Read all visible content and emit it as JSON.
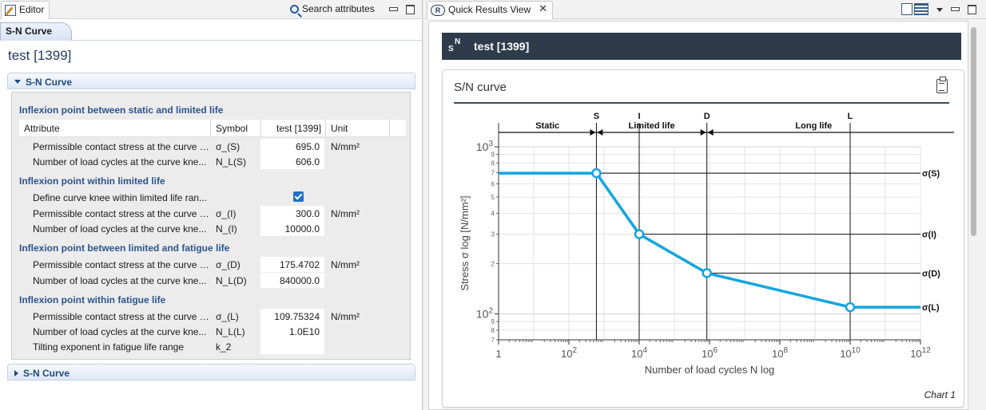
{
  "editor": {
    "tab_label": "Editor",
    "search_label": "Search attributes",
    "doc_tab": "S-N Curve",
    "doc_title": "test [1399]",
    "section_expanded_label": "S-N Curve",
    "section_collapsed_label": "S-N Curve",
    "columns": {
      "attribute": "Attribute",
      "symbol": "Symbol",
      "value": "test [1399]",
      "unit": "Unit"
    },
    "groups": [
      {
        "title": "Inflexion point between static and limited life",
        "rows": [
          {
            "attribute": "Permissible contact stress at the curve k...",
            "symbol": "σ_(S)",
            "value": "695.0",
            "unit": "N/mm²"
          },
          {
            "attribute": "Number of load cycles at the curve kne...",
            "symbol": "N_L(S)",
            "value": "606.0",
            "unit": ""
          }
        ]
      },
      {
        "title": "Inflexion point within limited life",
        "rows": [
          {
            "attribute": "Define curve knee within limited life ran...",
            "symbol": "",
            "value": "",
            "unit": "",
            "checkbox": true
          },
          {
            "attribute": "Permissible contact stress at the curve k...",
            "symbol": "σ_(I)",
            "value": "300.0",
            "unit": "N/mm²"
          },
          {
            "attribute": "Number of load cycles at the curve kne...",
            "symbol": "N_(I)",
            "value": "10000.0",
            "unit": ""
          }
        ]
      },
      {
        "title": "Inflexion point between limited and fatigue life",
        "rows": [
          {
            "attribute": "Permissible contact stress at the curve k...",
            "symbol": "σ_(D)",
            "value": "175.4702",
            "unit": "N/mm²"
          },
          {
            "attribute": "Number of load cycles at the curve kne...",
            "symbol": "N_L(D)",
            "value": "840000.0",
            "unit": ""
          }
        ]
      },
      {
        "title": "Inflexion point within fatigue life",
        "rows": [
          {
            "attribute": "Permissible contact stress at the curve k...",
            "symbol": "σ_(L)",
            "value": "109.75324",
            "unit": "N/mm²"
          },
          {
            "attribute": "Number of load cycles at the curve kne...",
            "symbol": "N_L(L)",
            "value": "1.0E10",
            "unit": ""
          },
          {
            "attribute": "Tilting exponent in fatigue life range",
            "symbol": "k_2",
            "value": "",
            "unit": ""
          }
        ]
      }
    ]
  },
  "quick_results": {
    "tab_label": "Quick Results View",
    "tab_icon_letter": "R",
    "header_icon_text": "N",
    "header_icon_sub": "S",
    "header_title": "test [1399]",
    "card_title": "S/N curve",
    "footer": "Chart 1"
  },
  "icons": {
    "editor_tab": "edit-pencil-icon",
    "search": "search-icon",
    "minimize": "minimize-icon",
    "maximize": "maximize-icon",
    "quick_results": "quick-results-icon",
    "close": "close-icon",
    "view_menu": "view-menu-icon",
    "clipboard": "clipboard-icon",
    "sn_curve": "sn-curve-icon",
    "expand": "chevron-down-icon",
    "collapse": "chevron-right-icon"
  },
  "colors": {
    "curve": "#12a5e0",
    "header_dark": "#2e3b4a",
    "group_title": "#2c5590"
  },
  "chart_data": {
    "type": "line",
    "title": "",
    "xlabel": "Number of load cycles N log",
    "ylabel": "Stress σ log [N/mm²]",
    "x_scale": "log",
    "y_scale": "log",
    "xlim": [
      1,
      1000000000000.0
    ],
    "ylim": [
      70,
      1000
    ],
    "x_ticks": [
      {
        "value": 1,
        "base": "1",
        "exp": ""
      },
      {
        "value": 100,
        "base": "10",
        "exp": "2"
      },
      {
        "value": 10000,
        "base": "10",
        "exp": "4"
      },
      {
        "value": 1000000,
        "base": "10",
        "exp": "6"
      },
      {
        "value": 100000000,
        "base": "10",
        "exp": "8"
      },
      {
        "value": 10000000000,
        "base": "10",
        "exp": "10"
      },
      {
        "value": 1000000000000,
        "base": "10",
        "exp": "12"
      }
    ],
    "y_major_ticks": [
      {
        "value": 100,
        "base": "10",
        "exp": "2"
      },
      {
        "value": 1000,
        "base": "10",
        "exp": "3"
      }
    ],
    "y_minor_ticks": [
      {
        "value": 200,
        "label": "2"
      },
      {
        "value": 300,
        "label": "3"
      },
      {
        "value": 400,
        "label": "4"
      },
      {
        "value": 500,
        "label": "5"
      },
      {
        "value": 600,
        "label": "6"
      },
      {
        "value": 700,
        "label": "7"
      },
      {
        "value": 800,
        "label": "8"
      },
      {
        "value": 900,
        "label": "9"
      },
      {
        "value": 70,
        "label": "7"
      },
      {
        "value": 80,
        "label": "8"
      },
      {
        "value": 90,
        "label": "9"
      }
    ],
    "series": [
      {
        "values": [
          {
            "x": 1,
            "y": 695.0
          },
          {
            "x": 606.0,
            "y": 695.0
          },
          {
            "x": 10000.0,
            "y": 300.0
          },
          {
            "x": 840000.0,
            "y": 175.4702
          },
          {
            "x": 10000000000,
            "y": 109.75324
          },
          {
            "x": 1000000000000,
            "y": 109.75324
          }
        ]
      }
    ],
    "knee_points": [
      {
        "label": "S",
        "x": 606.0,
        "y": 695.0,
        "stress_label": "σ(S)"
      },
      {
        "label": "I",
        "x": 10000.0,
        "y": 300.0,
        "stress_label": "σ(I)"
      },
      {
        "label": "D",
        "x": 840000.0,
        "y": 175.4702,
        "stress_label": "σ(D)"
      },
      {
        "label": "L",
        "x": 10000000000,
        "y": 109.75324,
        "stress_label": "σ(L)"
      }
    ],
    "regions": [
      {
        "label": "Static",
        "from": 1,
        "to": 606.0
      },
      {
        "label": "Limited life",
        "from": 606.0,
        "to": 840000.0
      },
      {
        "label": "Long life",
        "from": 840000.0,
        "to": 1000000000000
      }
    ],
    "grid": true,
    "legend": "none"
  }
}
